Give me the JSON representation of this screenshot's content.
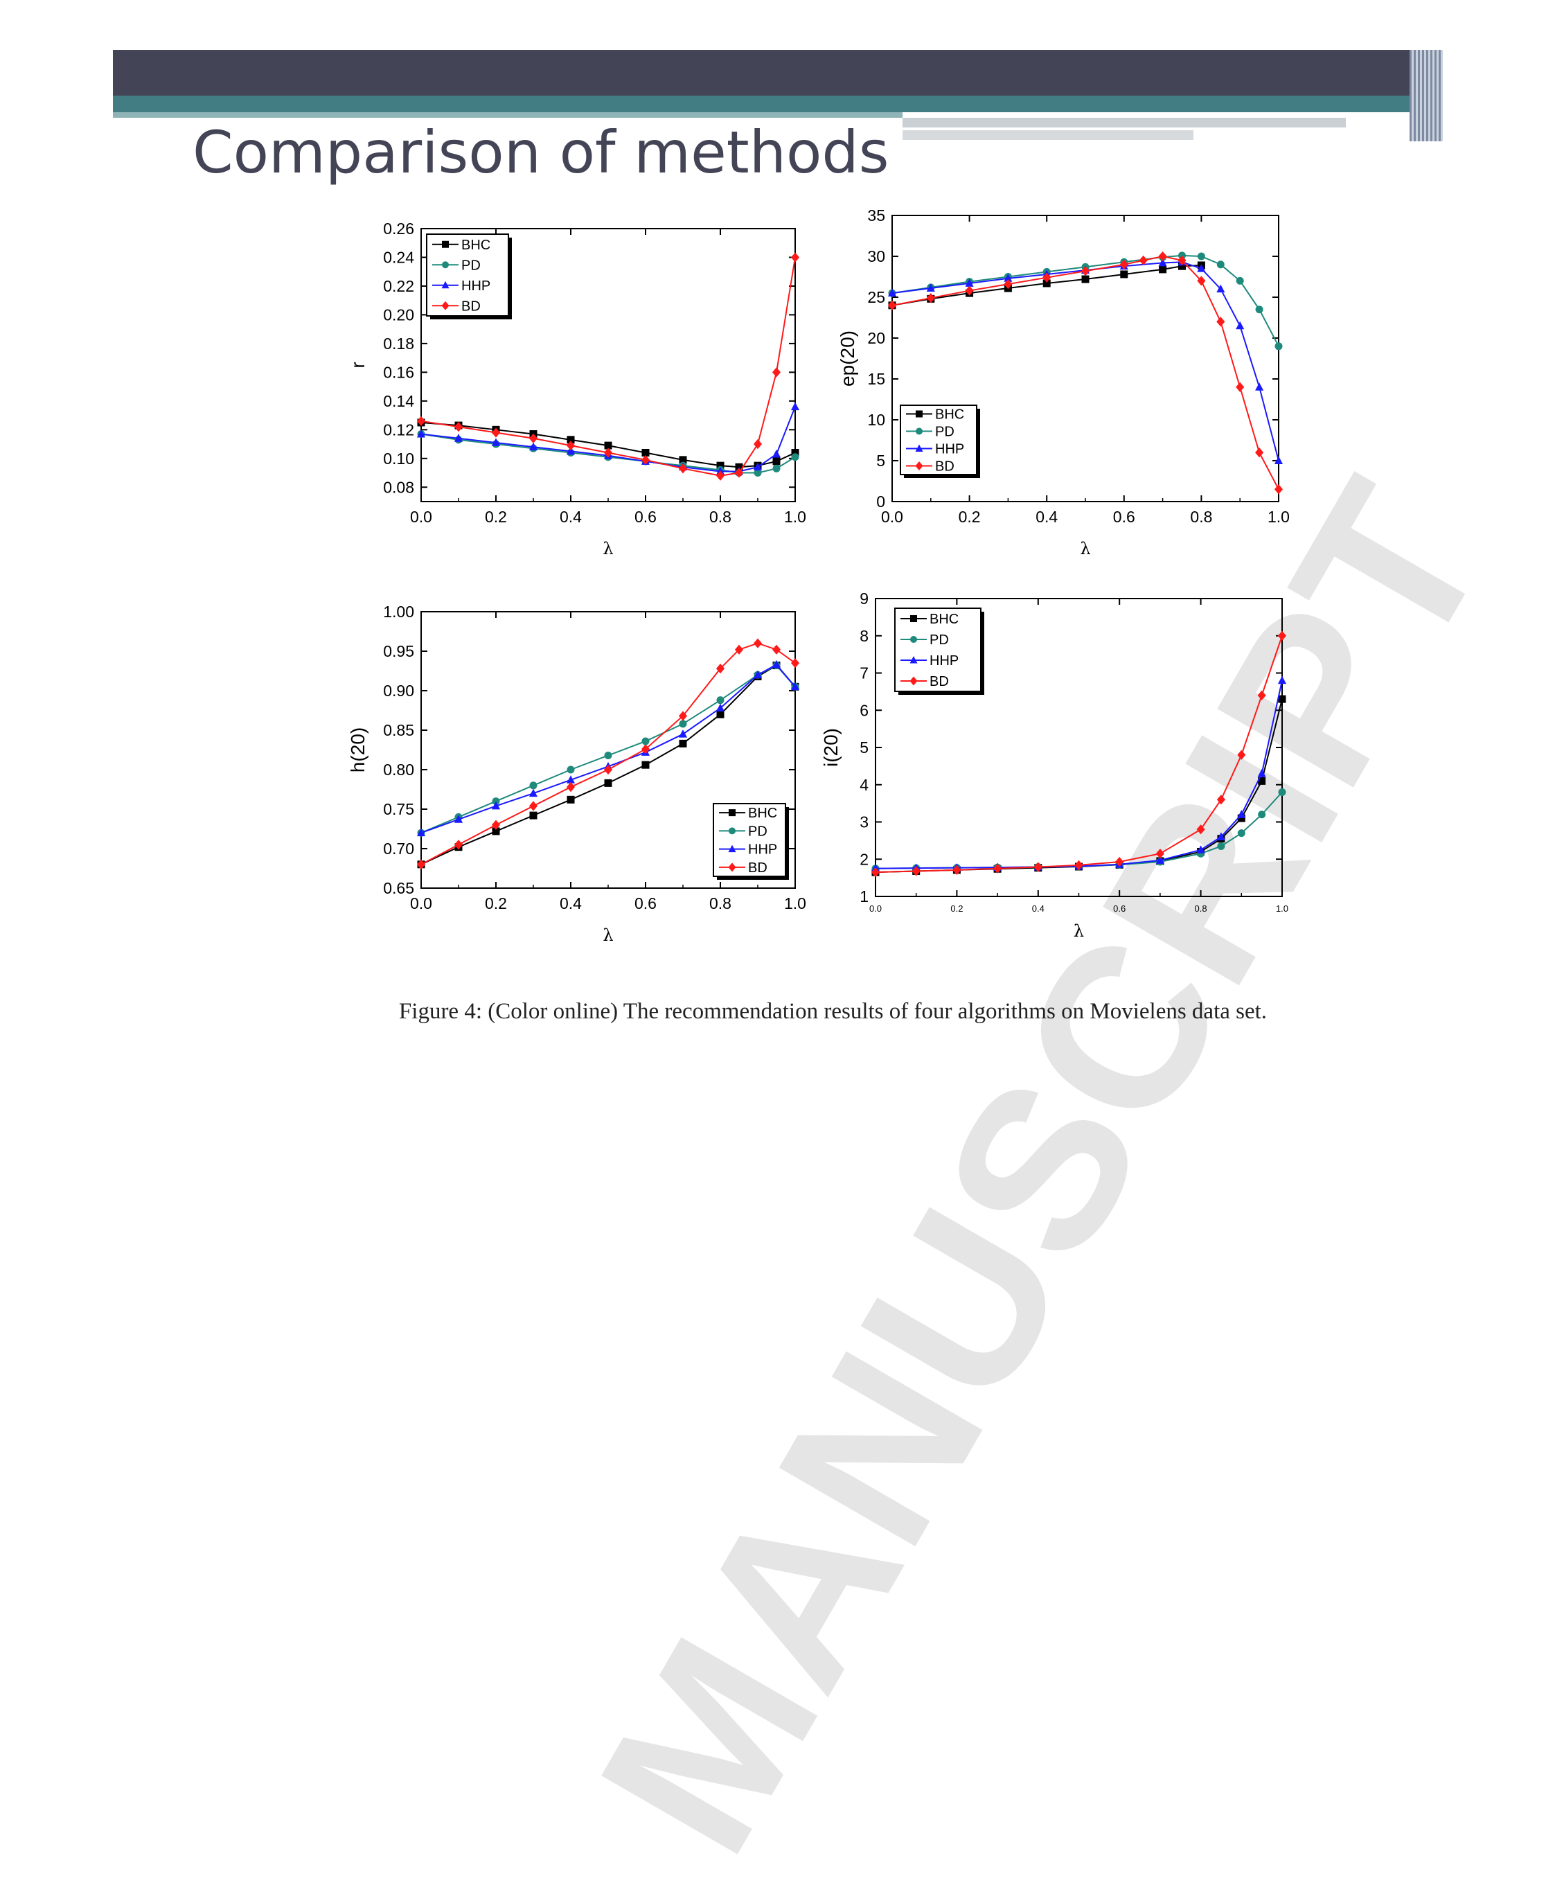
{
  "slide": {
    "title": "Comparison of methods"
  },
  "watermark": "MANUSCRIPT",
  "caption": "Figure 4: (Color online) The recommendation results of four algorithms on Movielens data set.",
  "colors": {
    "BHC": "#000000",
    "PD": "#1d8a7c",
    "HHP": "#1a1aff",
    "BD": "#ff1a1a",
    "header_dark": "#434455",
    "header_teal": "#417d82"
  },
  "chart_data": [
    {
      "type": "line",
      "title": "",
      "xlabel": "λ",
      "ylabel": "r",
      "xlim": [
        0,
        1
      ],
      "ylim": [
        0.07,
        0.26
      ],
      "xticks": [
        0.0,
        0.2,
        0.4,
        0.6,
        0.8,
        1.0
      ],
      "xtick_labels": [
        "0.0",
        "0.2",
        "0.4",
        "0.6",
        "0.8",
        "1.0"
      ],
      "yticks": [
        0.08,
        0.1,
        0.12,
        0.14,
        0.16,
        0.18,
        0.2,
        0.22,
        0.24,
        0.26
      ],
      "ytick_labels": [
        "0.08",
        "0.10",
        "0.12",
        "0.14",
        "0.16",
        "0.18",
        "0.20",
        "0.22",
        "0.24",
        "0.26"
      ],
      "legend": "top-left",
      "series": [
        {
          "name": "BHC",
          "color": "#000000",
          "marker": "square",
          "x": [
            0,
            0.1,
            0.2,
            0.3,
            0.4,
            0.5,
            0.6,
            0.7,
            0.8,
            0.85,
            0.9,
            0.95,
            1.0
          ],
          "y": [
            0.125,
            0.123,
            0.12,
            0.117,
            0.113,
            0.109,
            0.104,
            0.099,
            0.095,
            0.094,
            0.095,
            0.098,
            0.104
          ]
        },
        {
          "name": "PD",
          "color": "#1d8a7c",
          "marker": "circle",
          "x": [
            0,
            0.1,
            0.2,
            0.3,
            0.4,
            0.5,
            0.6,
            0.7,
            0.8,
            0.85,
            0.9,
            0.95,
            1.0
          ],
          "y": [
            0.117,
            0.113,
            0.11,
            0.107,
            0.104,
            0.101,
            0.098,
            0.095,
            0.092,
            0.09,
            0.09,
            0.093,
            0.101
          ]
        },
        {
          "name": "HHP",
          "color": "#1a1aff",
          "marker": "triangle",
          "x": [
            0,
            0.1,
            0.2,
            0.3,
            0.4,
            0.5,
            0.6,
            0.7,
            0.8,
            0.85,
            0.9,
            0.95,
            1.0
          ],
          "y": [
            0.117,
            0.114,
            0.111,
            0.108,
            0.105,
            0.102,
            0.098,
            0.094,
            0.091,
            0.091,
            0.094,
            0.103,
            0.136
          ]
        },
        {
          "name": "BD",
          "color": "#ff1a1a",
          "marker": "diamond",
          "x": [
            0,
            0.1,
            0.2,
            0.3,
            0.4,
            0.5,
            0.6,
            0.7,
            0.8,
            0.85,
            0.9,
            0.95,
            1.0
          ],
          "y": [
            0.126,
            0.122,
            0.118,
            0.114,
            0.109,
            0.104,
            0.099,
            0.093,
            0.088,
            0.09,
            0.11,
            0.16,
            0.24
          ]
        }
      ]
    },
    {
      "type": "line",
      "title": "",
      "xlabel": "λ",
      "ylabel": "ep(20)",
      "xlim": [
        0,
        1
      ],
      "ylim": [
        0,
        35
      ],
      "xticks": [
        0.0,
        0.2,
        0.4,
        0.6,
        0.8,
        1.0
      ],
      "xtick_labels": [
        "0.0",
        "0.2",
        "0.4",
        "0.6",
        "0.8",
        "1.0"
      ],
      "yticks": [
        0,
        5,
        10,
        15,
        20,
        25,
        30,
        35
      ],
      "ytick_labels": [
        "0",
        "5",
        "10",
        "15",
        "20",
        "25",
        "30",
        "35"
      ],
      "legend": "bottom-left",
      "series": [
        {
          "name": "BHC",
          "color": "#000000",
          "marker": "square",
          "x": [
            0,
            0.1,
            0.2,
            0.3,
            0.4,
            0.5,
            0.6,
            0.7,
            0.75,
            0.8
          ],
          "y": [
            24,
            24.8,
            25.5,
            26.1,
            26.7,
            27.2,
            27.8,
            28.4,
            28.8,
            28.9
          ]
        },
        {
          "name": "PD",
          "color": "#1d8a7c",
          "marker": "circle",
          "x": [
            0,
            0.1,
            0.2,
            0.3,
            0.4,
            0.5,
            0.6,
            0.7,
            0.75,
            0.8,
            0.85,
            0.9,
            0.95,
            1.0
          ],
          "y": [
            25.5,
            26.2,
            26.9,
            27.5,
            28.1,
            28.7,
            29.3,
            29.9,
            30.1,
            30,
            29,
            27,
            23.5,
            19
          ]
        },
        {
          "name": "HHP",
          "color": "#1a1aff",
          "marker": "triangle",
          "x": [
            0,
            0.1,
            0.2,
            0.3,
            0.4,
            0.5,
            0.6,
            0.7,
            0.75,
            0.8,
            0.85,
            0.9,
            0.95,
            1.0
          ],
          "y": [
            25.5,
            26.1,
            26.7,
            27.3,
            27.8,
            28.3,
            28.8,
            29.2,
            29.3,
            28.5,
            26,
            21.5,
            14,
            5
          ]
        },
        {
          "name": "BD",
          "color": "#ff1a1a",
          "marker": "diamond",
          "x": [
            0,
            0.1,
            0.2,
            0.3,
            0.4,
            0.5,
            0.6,
            0.65,
            0.7,
            0.75,
            0.8,
            0.85,
            0.9,
            0.95,
            1.0
          ],
          "y": [
            24,
            24.9,
            25.8,
            26.6,
            27.4,
            28.2,
            29,
            29.5,
            30,
            29.5,
            27,
            22,
            14,
            6,
            1.5
          ]
        }
      ]
    },
    {
      "type": "line",
      "title": "",
      "xlabel": "λ",
      "ylabel": "h(20)",
      "xlim": [
        0,
        1
      ],
      "ylim": [
        0.65,
        1.0
      ],
      "xticks": [
        0.0,
        0.2,
        0.4,
        0.6,
        0.8,
        1.0
      ],
      "xtick_labels": [
        "0.0",
        "0.2",
        "0.4",
        "0.6",
        "0.8",
        "1.0"
      ],
      "yticks": [
        0.65,
        0.7,
        0.75,
        0.8,
        0.85,
        0.9,
        0.95,
        1.0
      ],
      "ytick_labels": [
        "0.65",
        "0.70",
        "0.75",
        "0.80",
        "0.85",
        "0.90",
        "0.95",
        "1.00"
      ],
      "legend": "bottom-right",
      "series": [
        {
          "name": "BHC",
          "color": "#000000",
          "marker": "square",
          "x": [
            0,
            0.1,
            0.2,
            0.3,
            0.4,
            0.5,
            0.6,
            0.7,
            0.8,
            0.9,
            0.95,
            1.0
          ],
          "y": [
            0.68,
            0.702,
            0.722,
            0.742,
            0.762,
            0.783,
            0.806,
            0.833,
            0.87,
            0.918,
            0.932,
            0.905
          ]
        },
        {
          "name": "PD",
          "color": "#1d8a7c",
          "marker": "circle",
          "x": [
            0,
            0.1,
            0.2,
            0.3,
            0.4,
            0.5,
            0.6,
            0.7,
            0.8,
            0.9,
            0.95,
            1.0
          ],
          "y": [
            0.72,
            0.74,
            0.76,
            0.78,
            0.8,
            0.818,
            0.836,
            0.858,
            0.888,
            0.92,
            0.932,
            0.905
          ]
        },
        {
          "name": "HHP",
          "color": "#1a1aff",
          "marker": "triangle",
          "x": [
            0,
            0.1,
            0.2,
            0.3,
            0.4,
            0.5,
            0.6,
            0.7,
            0.8,
            0.9,
            0.95,
            1.0
          ],
          "y": [
            0.72,
            0.737,
            0.754,
            0.77,
            0.787,
            0.804,
            0.822,
            0.845,
            0.878,
            0.92,
            0.933,
            0.905
          ]
        },
        {
          "name": "BD",
          "color": "#ff1a1a",
          "marker": "diamond",
          "x": [
            0,
            0.1,
            0.2,
            0.3,
            0.4,
            0.5,
            0.6,
            0.7,
            0.8,
            0.85,
            0.9,
            0.95,
            1.0
          ],
          "y": [
            0.68,
            0.705,
            0.73,
            0.754,
            0.778,
            0.8,
            0.826,
            0.868,
            0.928,
            0.952,
            0.96,
            0.952,
            0.935
          ]
        }
      ]
    },
    {
      "type": "line",
      "title": "",
      "xlabel": "λ",
      "ylabel": "i(20)",
      "xlim": [
        0,
        1
      ],
      "ylim": [
        1,
        9
      ],
      "xticks": [
        0.0,
        0.2,
        0.4,
        0.6,
        0.8,
        1.0
      ],
      "xtick_labels": [
        "0.0",
        "0.2",
        "0.4",
        "0.6",
        "0.8",
        "1.0"
      ],
      "yticks": [
        1,
        2,
        3,
        4,
        5,
        6,
        7,
        8,
        9
      ],
      "ytick_labels": [
        "1",
        "2",
        "3",
        "4",
        "5",
        "6",
        "7",
        "8",
        "9"
      ],
      "legend": "top-left",
      "series": [
        {
          "name": "BHC",
          "color": "#000000",
          "marker": "square",
          "x": [
            0,
            0.1,
            0.2,
            0.3,
            0.4,
            0.5,
            0.6,
            0.7,
            0.8,
            0.85,
            0.9,
            0.95,
            1.0
          ],
          "y": [
            1.65,
            1.68,
            1.71,
            1.74,
            1.77,
            1.8,
            1.85,
            1.95,
            2.2,
            2.55,
            3.1,
            4.1,
            6.3
          ]
        },
        {
          "name": "PD",
          "color": "#1d8a7c",
          "marker": "circle",
          "x": [
            0,
            0.1,
            0.2,
            0.3,
            0.4,
            0.5,
            0.6,
            0.7,
            0.8,
            0.85,
            0.9,
            0.95,
            1.0
          ],
          "y": [
            1.75,
            1.76,
            1.77,
            1.78,
            1.79,
            1.81,
            1.85,
            1.93,
            2.15,
            2.35,
            2.7,
            3.2,
            3.8
          ]
        },
        {
          "name": "HHP",
          "color": "#1a1aff",
          "marker": "triangle",
          "x": [
            0,
            0.1,
            0.2,
            0.3,
            0.4,
            0.5,
            0.6,
            0.7,
            0.8,
            0.85,
            0.9,
            0.95,
            1.0
          ],
          "y": [
            1.75,
            1.76,
            1.77,
            1.78,
            1.79,
            1.81,
            1.86,
            1.97,
            2.25,
            2.6,
            3.2,
            4.3,
            6.8
          ]
        },
        {
          "name": "BD",
          "color": "#ff1a1a",
          "marker": "diamond",
          "x": [
            0,
            0.1,
            0.2,
            0.3,
            0.4,
            0.5,
            0.6,
            0.7,
            0.8,
            0.85,
            0.9,
            0.95,
            1.0
          ],
          "y": [
            1.65,
            1.68,
            1.71,
            1.75,
            1.79,
            1.84,
            1.93,
            2.15,
            2.8,
            3.6,
            4.8,
            6.4,
            8.0
          ]
        }
      ]
    }
  ]
}
